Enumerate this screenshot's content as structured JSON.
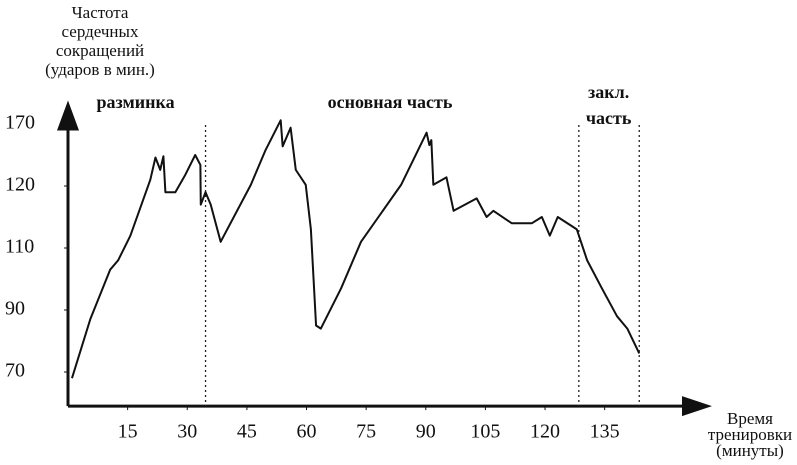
{
  "chart_data": {
    "type": "line",
    "y_label_lines": [
      "Частота",
      "сердечных",
      "сокращений",
      "(ударов в мин.)"
    ],
    "x_label_lines": [
      "Время",
      "тренировки",
      "(минуты)"
    ],
    "x": [
      1,
      5.6,
      10.6,
      12.6,
      15.7,
      20.7,
      22,
      23.2,
      24,
      24.5,
      27,
      29.5,
      32,
      33.3,
      33.4,
      34.6,
      35.9,
      38.4,
      46,
      49.7,
      53.5,
      54,
      56,
      57.3,
      59.8,
      61.1,
      62.4,
      63.6,
      68.7,
      73.7,
      83.8,
      90.2,
      90.9,
      91.4,
      91.9,
      95.2,
      97,
      102.8,
      105.3,
      107,
      111.6,
      116.7,
      119.2,
      121.2,
      123.2,
      128,
      130.6,
      134.3,
      138.1,
      140.7,
      143.7
    ],
    "series": [
      {
        "color": "#111111",
        "values": [
          68,
          87,
          103,
          106,
          112,
          125,
          143,
          133,
          144,
          119,
          119,
          129,
          145,
          137,
          117,
          119,
          117,
          111,
          121,
          149,
          173,
          152,
          167,
          133,
          121,
          113,
          85,
          84,
          97,
          111,
          121,
          163,
          153,
          157,
          121,
          127,
          116,
          118,
          115,
          116,
          114,
          114,
          115,
          112,
          115,
          113,
          106,
          97,
          88,
          84,
          76
        ]
      }
    ],
    "xlim": [
      0,
      162
    ],
    "xticks": [
      15,
      30,
      45,
      60,
      75,
      90,
      105,
      120,
      135
    ],
    "ylim": [
      59,
      189
    ],
    "yticks": [
      70,
      90,
      110,
      120,
      170
    ],
    "phase_boundaries": [
      34.6,
      128.5,
      143.7
    ],
    "phase_labels": [
      {
        "lines": [
          "разминка"
        ],
        "x": 17
      },
      {
        "lines": [
          "основная часть"
        ],
        "x": 81
      },
      {
        "lines": [
          "закл.",
          "часть"
        ],
        "x": 136
      }
    ]
  }
}
